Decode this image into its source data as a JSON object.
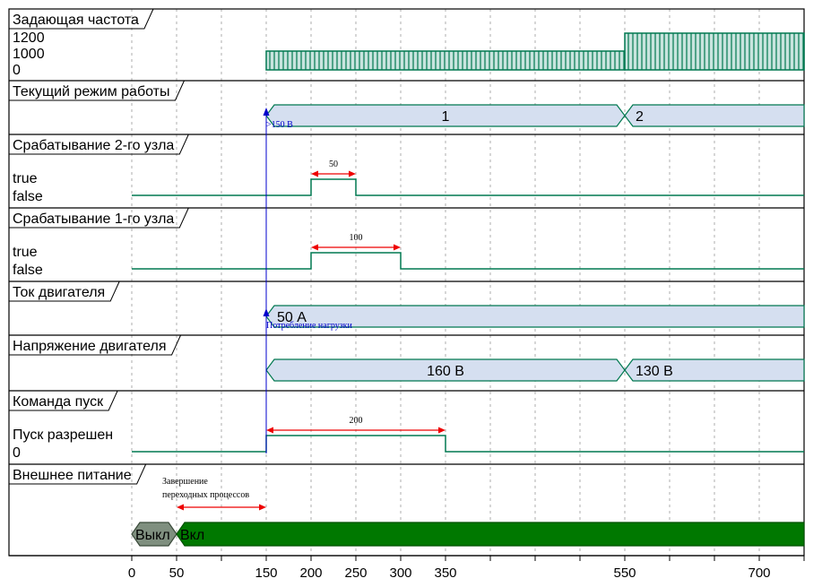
{
  "chart_data": {
    "type": "timing-diagram",
    "x_ticks": [
      0,
      50,
      150,
      200,
      250,
      300,
      350,
      550,
      700
    ],
    "signals": [
      {
        "label": "Задающая частота",
        "kind": "analog",
        "levels": [
          "1200",
          "1000",
          "0"
        ],
        "segments": [
          {
            "from": 150,
            "to": 550,
            "value": 1000
          },
          {
            "from": 550,
            "to": 750,
            "value": 1200
          }
        ]
      },
      {
        "label": "Текущий режим работы",
        "kind": "bus",
        "segments": [
          {
            "from": 150,
            "to": 550,
            "value": "1"
          },
          {
            "from": 550,
            "to": 750,
            "value": "2"
          }
        ]
      },
      {
        "label": "Срабатывание 2-го узла",
        "kind": "binary",
        "levels": [
          "true",
          "false"
        ],
        "pulses": [
          {
            "from": 200,
            "to": 250
          }
        ],
        "annotation": {
          "text": "50",
          "from": 200,
          "to": 250
        }
      },
      {
        "label": "Срабатывание 1-го узла",
        "kind": "binary",
        "levels": [
          "true",
          "false"
        ],
        "pulses": [
          {
            "from": 200,
            "to": 300
          }
        ],
        "annotation": {
          "text": "100",
          "from": 200,
          "to": 300
        }
      },
      {
        "label": "Ток двигателя",
        "kind": "bus",
        "segments": [
          {
            "from": 150,
            "to": 750,
            "value": "50 А"
          }
        ]
      },
      {
        "label": "Напряжение двигателя",
        "kind": "bus",
        "segments": [
          {
            "from": 150,
            "to": 550,
            "value": "160 В"
          },
          {
            "from": 550,
            "to": 750,
            "value": "130 В"
          }
        ]
      },
      {
        "label": "Команда пуск",
        "kind": "binary",
        "levels": [
          "Пуск разрешен",
          "0"
        ],
        "pulses": [
          {
            "from": 150,
            "to": 350
          }
        ],
        "annotation": {
          "text": "200",
          "from": 150,
          "to": 350
        }
      },
      {
        "label": "Внешнее питание",
        "kind": "state",
        "segments": [
          {
            "from": 0,
            "to": 50,
            "value": "Выкл",
            "color": "#7f8f7f"
          },
          {
            "from": 50,
            "to": 750,
            "value": "Вкл",
            "color": "#007800"
          }
        ],
        "annotation": {
          "text_lines": [
            "Завершение",
            "переходных процессов"
          ],
          "from": 50,
          "to": 150
        }
      }
    ],
    "markers": [
      {
        "at": 150,
        "from_signal": 1,
        "label": ">150 В"
      },
      {
        "at": 150,
        "from_signal": 4,
        "label": "Потребление нагрузки"
      }
    ]
  },
  "colors": {
    "wave": "#007850",
    "bus_fill": "#d5dff0",
    "freq_fill": "#c8e4de",
    "dimension": "#ee0000",
    "marker": "#0000cc",
    "grid": "#9a9a9a"
  }
}
